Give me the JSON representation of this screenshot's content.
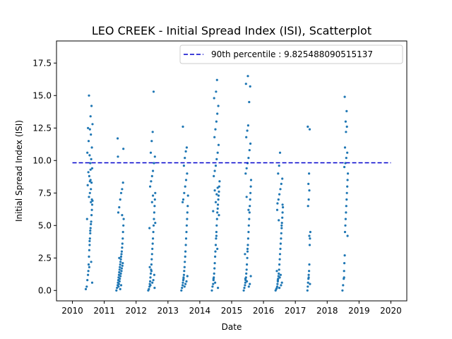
{
  "chart_data": {
    "type": "scatter",
    "title": "LEO CREEK - Initial Spread Index (ISI), Scatterplot",
    "xlabel": "Date",
    "ylabel": "Initial Spread Index (ISI)",
    "x_type": "year",
    "xlim": [
      2009.5,
      2020.5
    ],
    "ylim": [
      -0.8,
      19.2
    ],
    "x_ticks": [
      2010,
      2011,
      2012,
      2013,
      2014,
      2015,
      2016,
      2017,
      2018,
      2019,
      2020
    ],
    "y_ticks": [
      0.0,
      2.5,
      5.0,
      7.5,
      10.0,
      12.5,
      15.0,
      17.5
    ],
    "y_tick_labels": [
      "0.0",
      "2.5",
      "5.0",
      "7.5",
      "10.0",
      "12.5",
      "15.0",
      "17.5"
    ],
    "grid": false,
    "point_color": "#1f77b4",
    "reference_line": {
      "label": "90th percentile : 9.825488090515137",
      "value": 9.825488090515137,
      "x_range": [
        2010,
        2020
      ],
      "color": "#0000cc",
      "style": "dashed"
    },
    "legend_position": "top-right",
    "series": [
      {
        "season": 2010,
        "x": [
          2010.42,
          2010.45,
          2010.47,
          2010.49,
          2010.5,
          2010.51,
          2010.52,
          2010.53,
          2010.54,
          2010.55,
          2010.56,
          2010.57,
          2010.58,
          2010.59,
          2010.6,
          2010.61,
          2010.62,
          2010.63,
          2010.52,
          2010.55,
          2010.58,
          2010.48,
          2010.6,
          2010.57,
          2010.53,
          2010.5,
          2010.62,
          2010.56,
          2010.59,
          2010.54,
          2010.47,
          2010.61,
          2010.51,
          2010.58,
          2010.55,
          2010.63,
          2010.49,
          2010.57,
          2010.6,
          2010.52,
          2010.56,
          2010.54,
          2010.59,
          2010.53,
          2010.58,
          2010.61,
          2010.46,
          2010.62,
          2010.55,
          2010.57
        ],
        "y": [
          0.1,
          0.3,
          0.8,
          1.2,
          1.5,
          2.0,
          2.6,
          3.1,
          3.5,
          4.0,
          4.4,
          4.8,
          5.1,
          5.3,
          5.8,
          6.2,
          6.6,
          6.9,
          7.2,
          7.5,
          7.8,
          8.1,
          8.3,
          8.5,
          8.8,
          9.1,
          9.4,
          9.8,
          10.1,
          10.4,
          10.6,
          11.0,
          11.5,
          12.0,
          12.4,
          12.8,
          12.5,
          13.4,
          14.2,
          15.0,
          4.6,
          3.8,
          2.2,
          1.8,
          6.8,
          7.0,
          5.5,
          0.6,
          8.4,
          9.3
        ]
      },
      {
        "season": 2011,
        "x": [
          2011.38,
          2011.4,
          2011.42,
          2011.43,
          2011.44,
          2011.45,
          2011.46,
          2011.47,
          2011.48,
          2011.49,
          2011.5,
          2011.51,
          2011.52,
          2011.53,
          2011.54,
          2011.55,
          2011.56,
          2011.57,
          2011.58,
          2011.59,
          2011.6,
          2011.61,
          2011.44,
          2011.47,
          2011.5,
          2011.53,
          2011.56,
          2011.59,
          2011.46,
          2011.49,
          2011.52,
          2011.55,
          2011.58,
          2011.45,
          2011.51,
          2011.54,
          2011.57,
          2011.48,
          2011.43,
          2011.6,
          2011.42,
          2011.5,
          2011.53,
          2011.47,
          2011.56
        ],
        "y": [
          0.0,
          0.2,
          0.4,
          0.6,
          0.8,
          1.0,
          1.2,
          1.4,
          1.6,
          1.8,
          2.0,
          2.2,
          2.4,
          2.6,
          2.8,
          3.0,
          3.3,
          3.6,
          4.0,
          4.5,
          5.0,
          5.5,
          6.0,
          6.4,
          7.0,
          7.5,
          7.8,
          8.3,
          0.5,
          0.9,
          1.3,
          1.7,
          2.1,
          0.3,
          1.1,
          1.5,
          1.9,
          0.7,
          10.3,
          10.9,
          11.7,
          0.1,
          0.4,
          2.5,
          5.8
        ]
      },
      {
        "season": 2012,
        "x": [
          2012.38,
          2012.4,
          2012.42,
          2012.43,
          2012.44,
          2012.45,
          2012.46,
          2012.47,
          2012.48,
          2012.49,
          2012.5,
          2012.51,
          2012.52,
          2012.53,
          2012.54,
          2012.55,
          2012.56,
          2012.57,
          2012.58,
          2012.59,
          2012.6,
          2012.44,
          2012.47,
          2012.5,
          2012.53,
          2012.56,
          2012.59,
          2012.46,
          2012.49,
          2012.52,
          2012.55,
          2012.58,
          2012.45,
          2012.51,
          2012.54,
          2012.57,
          2012.48,
          2012.43,
          2012.6,
          2012.42,
          2012.5,
          2012.53
        ],
        "y": [
          0.0,
          0.1,
          0.3,
          0.5,
          0.7,
          1.0,
          1.3,
          1.6,
          2.0,
          2.4,
          2.8,
          3.2,
          3.6,
          4.0,
          4.5,
          5.0,
          5.5,
          6.0,
          6.5,
          7.0,
          7.5,
          8.0,
          8.4,
          8.8,
          9.2,
          9.8,
          10.3,
          10.6,
          11.5,
          12.2,
          15.3,
          0.2,
          0.4,
          0.6,
          0.8,
          1.2,
          1.5,
          1.8,
          5.2,
          4.8,
          6.8,
          7.3
        ]
      },
      {
        "season": 2013,
        "x": [
          2013.42,
          2013.44,
          2013.46,
          2013.47,
          2013.48,
          2013.49,
          2013.5,
          2013.51,
          2013.52,
          2013.53,
          2013.54,
          2013.55,
          2013.56,
          2013.57,
          2013.58,
          2013.59,
          2013.6,
          2013.61,
          2013.62,
          2013.48,
          2013.51,
          2013.54,
          2013.57,
          2013.6,
          2013.5,
          2013.53,
          2013.56,
          2013.59,
          2013.47,
          2013.52,
          2013.55,
          2013.58,
          2013.49,
          2013.61,
          2013.46,
          2013.63
        ],
        "y": [
          0.0,
          0.2,
          0.4,
          0.6,
          0.8,
          1.0,
          1.2,
          1.5,
          1.8,
          2.2,
          2.6,
          3.0,
          3.5,
          4.0,
          4.5,
          5.0,
          5.5,
          6.0,
          6.5,
          7.0,
          7.5,
          8.0,
          8.5,
          9.0,
          9.6,
          10.2,
          10.7,
          11.0,
          12.6,
          0.3,
          0.5,
          0.7,
          0.9,
          1.1,
          6.8,
          7.3
        ]
      },
      {
        "season": 2014,
        "x": [
          2014.38,
          2014.4,
          2014.42,
          2014.43,
          2014.44,
          2014.45,
          2014.46,
          2014.47,
          2014.48,
          2014.49,
          2014.5,
          2014.51,
          2014.52,
          2014.53,
          2014.54,
          2014.55,
          2014.56,
          2014.57,
          2014.58,
          2014.59,
          2014.6,
          2014.61,
          2014.62,
          2014.44,
          2014.47,
          2014.5,
          2014.53,
          2014.56,
          2014.59,
          2014.46,
          2014.49,
          2014.52,
          2014.55,
          2014.58,
          2014.45,
          2014.51,
          2014.54,
          2014.57,
          2014.48,
          2014.43,
          2014.6,
          2014.42,
          2014.5,
          2014.53,
          2014.47,
          2014.56,
          2014.52,
          2014.55
        ],
        "y": [
          0.0,
          0.3,
          0.5,
          0.8,
          1.0,
          1.3,
          1.7,
          2.1,
          2.6,
          3.0,
          3.5,
          4.0,
          4.5,
          5.0,
          5.5,
          6.0,
          6.3,
          6.6,
          7.0,
          7.3,
          7.6,
          8.0,
          8.4,
          8.8,
          9.2,
          9.6,
          10.1,
          10.6,
          11.2,
          11.8,
          12.4,
          13.0,
          13.6,
          14.2,
          14.8,
          15.3,
          16.2,
          0.2,
          0.6,
          0.9,
          5.8,
          6.1,
          6.8,
          7.4,
          7.7,
          7.9,
          4.2,
          3.2
        ]
      },
      {
        "season": 2015,
        "x": [
          2015.38,
          2015.4,
          2015.42,
          2015.43,
          2015.44,
          2015.45,
          2015.46,
          2015.47,
          2015.48,
          2015.49,
          2015.5,
          2015.51,
          2015.52,
          2015.53,
          2015.54,
          2015.55,
          2015.56,
          2015.57,
          2015.58,
          2015.59,
          2015.6,
          2015.61,
          2015.44,
          2015.47,
          2015.5,
          2015.53,
          2015.56,
          2015.59,
          2015.46,
          2015.49,
          2015.52,
          2015.55,
          2015.58,
          2015.45,
          2015.51,
          2015.54,
          2015.57,
          2015.48,
          2015.43,
          2015.6,
          2015.42,
          2015.5,
          2015.53,
          2015.47
        ],
        "y": [
          0.0,
          0.2,
          0.4,
          0.6,
          0.8,
          1.0,
          1.3,
          1.6,
          2.0,
          2.5,
          3.0,
          3.5,
          4.0,
          4.5,
          5.0,
          5.5,
          6.0,
          6.5,
          7.0,
          7.5,
          8.0,
          8.5,
          9.0,
          9.4,
          9.8,
          10.2,
          10.8,
          11.3,
          11.8,
          12.3,
          12.7,
          14.5,
          15.7,
          15.9,
          16.5,
          0.3,
          0.5,
          0.7,
          0.9,
          1.1,
          2.8,
          3.2,
          6.2,
          7.2
        ]
      },
      {
        "season": 2016,
        "x": [
          2016.38,
          2016.4,
          2016.42,
          2016.43,
          2016.44,
          2016.45,
          2016.46,
          2016.47,
          2016.48,
          2016.49,
          2016.5,
          2016.51,
          2016.52,
          2016.53,
          2016.54,
          2016.55,
          2016.56,
          2016.57,
          2016.58,
          2016.59,
          2016.6,
          2016.61,
          2016.44,
          2016.47,
          2016.5,
          2016.53,
          2016.56,
          2016.59,
          2016.46,
          2016.49,
          2016.52,
          2016.55,
          2016.58,
          2016.45,
          2016.51,
          2016.54,
          2016.57,
          2016.48,
          2016.43,
          2016.6,
          2016.42,
          2016.5
        ],
        "y": [
          0.0,
          0.1,
          0.2,
          0.3,
          0.5,
          0.7,
          0.9,
          1.1,
          1.3,
          1.6,
          2.0,
          2.4,
          2.8,
          3.2,
          3.6,
          4.0,
          4.4,
          4.8,
          5.2,
          5.6,
          6.0,
          6.4,
          6.7,
          7.0,
          7.4,
          7.8,
          8.2,
          8.6,
          9.0,
          9.6,
          10.6,
          0.4,
          0.6,
          0.8,
          1.0,
          1.2,
          5.0,
          5.4,
          6.2,
          6.6,
          1.5,
          0.2
        ]
      },
      {
        "season": 2017,
        "x": [
          2017.38,
          2017.39,
          2017.4,
          2017.41,
          2017.42,
          2017.43,
          2017.44,
          2017.45,
          2017.46,
          2017.47,
          2017.4,
          2017.42,
          2017.44,
          2017.41,
          2017.43,
          2017.45,
          2017.39,
          2017.46,
          2017.42,
          2017.44
        ],
        "y": [
          0.0,
          0.3,
          0.6,
          0.9,
          1.2,
          1.5,
          2.0,
          3.5,
          4.0,
          4.5,
          6.5,
          7.0,
          7.7,
          8.2,
          9.0,
          12.4,
          12.6,
          0.5,
          1.0,
          4.2
        ]
      },
      {
        "season": 2018,
        "x": [
          2018.48,
          2018.5,
          2018.52,
          2018.53,
          2018.54,
          2018.55,
          2018.56,
          2018.57,
          2018.58,
          2018.59,
          2018.6,
          2018.61,
          2018.62,
          2018.63,
          2018.64,
          2018.65,
          2018.54,
          2018.57,
          2018.6,
          2018.63,
          2018.56,
          2018.59,
          2018.62,
          2018.58,
          2018.61,
          2018.55,
          2018.64,
          2018.53
        ],
        "y": [
          0.0,
          0.4,
          0.9,
          1.5,
          2.1,
          2.7,
          4.5,
          5.0,
          5.5,
          6.0,
          6.5,
          7.0,
          7.5,
          8.0,
          8.5,
          9.0,
          9.5,
          9.8,
          10.2,
          10.6,
          11.0,
          12.2,
          12.6,
          13.0,
          13.8,
          14.9,
          4.2,
          1.0
        ]
      }
    ]
  }
}
